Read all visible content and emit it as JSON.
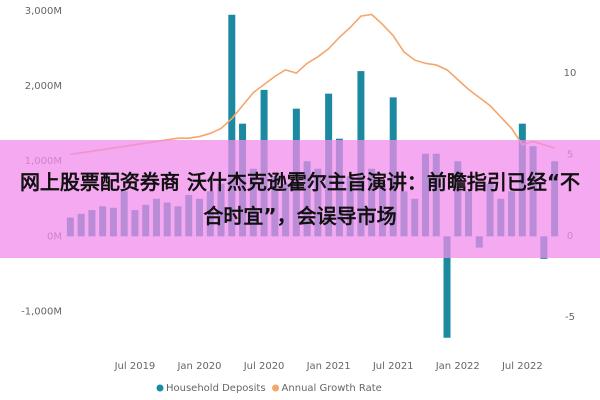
{
  "chart_data": {
    "type": "bar_line",
    "annotation": "网上股票配资券商 沃什杰克逊霍尔主旨演讲：前瞻指引已经“不合时宜”，会误导市场",
    "categories": [
      null,
      null,
      null,
      null,
      null,
      null,
      "Jul 2019",
      null,
      null,
      null,
      null,
      null,
      "Jan 2020",
      null,
      null,
      null,
      null,
      null,
      "Jul 2020",
      null,
      null,
      null,
      null,
      null,
      "Jan 2021",
      null,
      null,
      null,
      null,
      null,
      "Jul 2021",
      null,
      null,
      null,
      null,
      null,
      "Jan 2022",
      null,
      null,
      null,
      null,
      null,
      "Jul 2022",
      null,
      null,
      null
    ],
    "series": [
      {
        "name": "Household Deposits",
        "type": "bar",
        "color": "#1b8aa0",
        "values": [
          250,
          300,
          350,
          400,
          380,
          600,
          350,
          420,
          500,
          450,
          400,
          550,
          500,
          600,
          700,
          2950,
          1500,
          900,
          1950,
          800,
          700,
          1700,
          1000,
          900,
          1900,
          1300,
          800,
          2200,
          900,
          700,
          1850,
          600,
          500,
          1100,
          1100,
          -1350,
          1000,
          600,
          -150,
          700,
          500,
          600,
          1500,
          1200,
          -300,
          1000
        ]
      },
      {
        "name": "Annual Growth Rate",
        "type": "line",
        "axis": "y2",
        "color": "#f5a66b",
        "values": [
          5.0,
          5.1,
          5.2,
          5.3,
          5.4,
          5.5,
          5.6,
          5.7,
          5.8,
          5.9,
          6.0,
          6.0,
          6.1,
          6.3,
          6.6,
          7.2,
          8.0,
          8.8,
          9.3,
          9.8,
          10.2,
          10.0,
          10.6,
          11.0,
          11.5,
          12.2,
          12.8,
          13.5,
          13.6,
          13.0,
          12.3,
          11.3,
          10.8,
          10.6,
          10.5,
          10.2,
          9.6,
          9.0,
          8.5,
          8.0,
          7.3,
          6.6,
          5.6,
          5.8,
          5.6,
          5.4
        ]
      }
    ],
    "ylim": [
      -1380,
      3040
    ],
    "yticks": [
      {
        "value": -1000,
        "label": "-1,000M"
      },
      {
        "value": 0,
        "label": "0M"
      },
      {
        "value": 1000,
        "label": "1,000M"
      },
      {
        "value": 2000,
        "label": "2,000M"
      },
      {
        "value": 3000,
        "label": "3,000M"
      }
    ],
    "y2lim": [
      -6.4,
      14
    ],
    "y2ticks": [
      -5,
      0,
      5,
      10
    ],
    "grid": false
  }
}
